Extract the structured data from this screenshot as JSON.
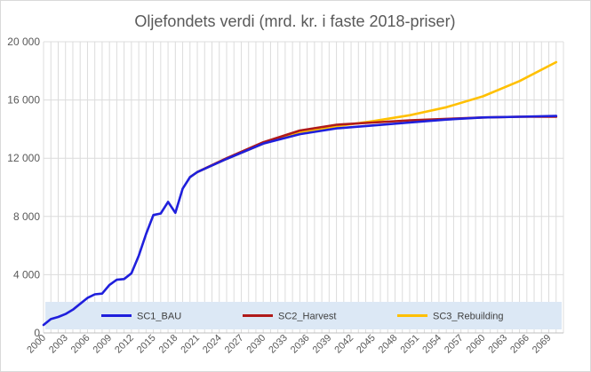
{
  "chart_data": {
    "type": "line",
    "title": "Oljefondets verdi (mrd. kr. i faste 2018-priser)",
    "xlabel": "",
    "ylabel": "",
    "xlim": [
      2000,
      2071
    ],
    "ylim": [
      0,
      20000
    ],
    "yticks": [
      0,
      4000,
      8000,
      12000,
      16000,
      20000
    ],
    "ytick_labels": [
      "0",
      "4 000",
      "8 000",
      "12 000",
      "16 000",
      "20 000"
    ],
    "xticks": [
      2000,
      2003,
      2006,
      2009,
      2012,
      2015,
      2018,
      2021,
      2024,
      2027,
      2030,
      2033,
      2036,
      2039,
      2042,
      2045,
      2048,
      2051,
      2054,
      2057,
      2060,
      2063,
      2066,
      2069
    ],
    "grid": {
      "vertical": true,
      "horizontal": true
    },
    "legend_placement": "bottom",
    "series": [
      {
        "name": "SC1_BAU",
        "color": "#1f1fdc",
        "x": [
          2000,
          2001,
          2002,
          2003,
          2004,
          2005,
          2006,
          2007,
          2008,
          2009,
          2010,
          2011,
          2012,
          2013,
          2014,
          2015,
          2016,
          2017,
          2018,
          2019,
          2020,
          2021,
          2025,
          2030,
          2035,
          2040,
          2045,
          2050,
          2055,
          2060,
          2065,
          2070
        ],
        "y": [
          550,
          950,
          1100,
          1300,
          1600,
          2000,
          2400,
          2650,
          2700,
          3300,
          3650,
          3700,
          4100,
          5300,
          6800,
          8100,
          8200,
          9000,
          8250,
          9900,
          10700,
          11050,
          11950,
          13000,
          13650,
          14050,
          14250,
          14450,
          14650,
          14800,
          14850,
          14900
        ]
      },
      {
        "name": "SC2_Harvest",
        "color": "#b01a1a",
        "x": [
          2021,
          2025,
          2030,
          2035,
          2040,
          2045,
          2050,
          2055,
          2060,
          2065,
          2070
        ],
        "y": [
          11050,
          12000,
          13100,
          13900,
          14300,
          14450,
          14600,
          14700,
          14800,
          14850,
          14850
        ]
      },
      {
        "name": "SC3_Rebuilding",
        "color": "#ffc000",
        "x": [
          2020,
          2021,
          2025,
          2030,
          2035,
          2040,
          2045,
          2050,
          2055,
          2060,
          2065,
          2070
        ],
        "y": [
          10700,
          11050,
          11950,
          13000,
          13750,
          14200,
          14550,
          14950,
          15500,
          16250,
          17300,
          18600
        ]
      }
    ]
  }
}
